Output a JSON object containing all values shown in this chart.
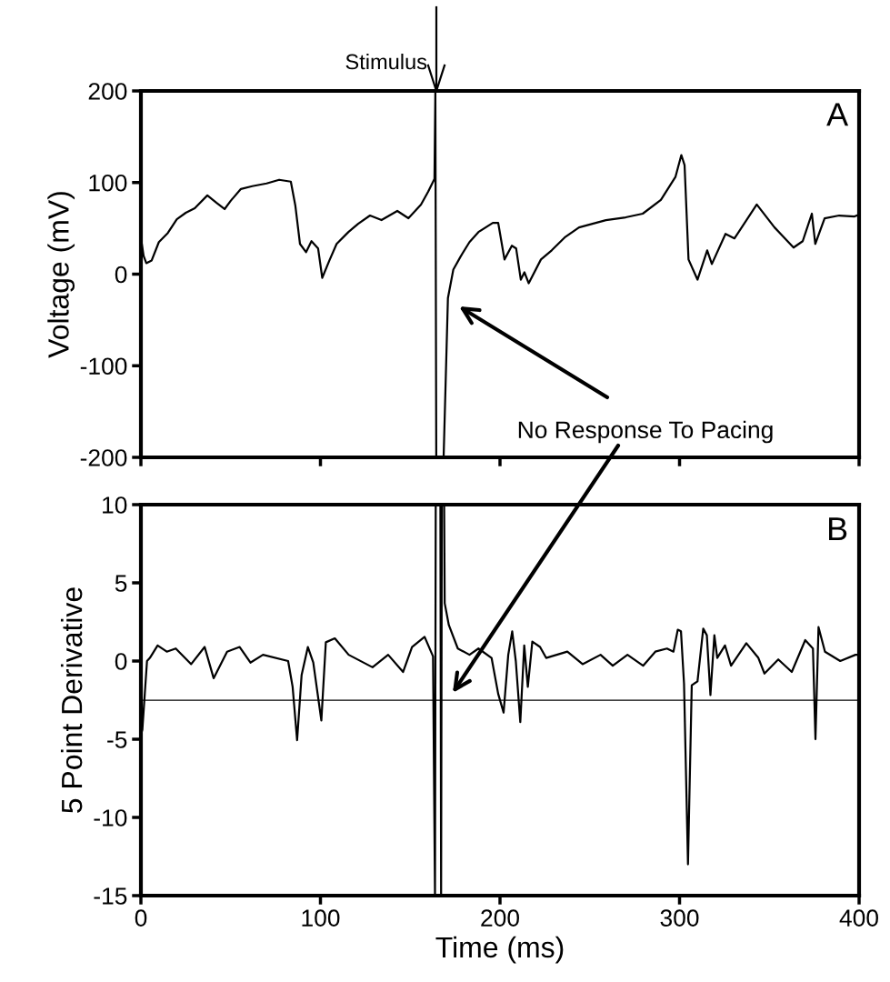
{
  "chart_data": [
    {
      "type": "line",
      "ylabel": "Voltage (mV)",
      "xlim": [
        0,
        400
      ],
      "xticks": [
        0,
        100,
        200,
        300,
        400
      ],
      "ylim": [
        -200,
        200
      ],
      "yticks": [
        -200,
        -100,
        0,
        100,
        200
      ],
      "tick_labels": "y",
      "grid": false,
      "legend": false,
      "series": [
        {
          "color": "#000000",
          "x": [
            0,
            1.5,
            3,
            6,
            10,
            15,
            20,
            25,
            30,
            37,
            42,
            46.6,
            50,
            55.7,
            62,
            70,
            77,
            83.5,
            86,
            88.6,
            92,
            95,
            98.7,
            101,
            105,
            109,
            115.6,
            121,
            127.6,
            134,
            142.8,
            149,
            156,
            160,
            163.5,
            164,
            164.5,
            168.6,
            171,
            174,
            178,
            183,
            188,
            196,
            199,
            202.5,
            206.6,
            209,
            211.6,
            213.6,
            216,
            222.8,
            228.8,
            236,
            244,
            259,
            270,
            279.5,
            289.6,
            297.7,
            301,
            302.8,
            305,
            310,
            315.4,
            318,
            325.6,
            330.6,
            343,
            352.9,
            363.5,
            368.6,
            373.7,
            375.6,
            380.8,
            388.9,
            397.5,
            400
          ],
          "values": [
            40,
            20,
            12,
            15,
            35,
            45,
            60,
            67,
            72,
            86,
            78,
            71,
            80,
            93,
            96,
            99,
            103,
            101,
            75,
            33,
            24,
            36,
            28,
            -4,
            15,
            33,
            46,
            55,
            64,
            59,
            69,
            61,
            76,
            90,
            104,
            200,
            -200,
            -200,
            -26,
            5,
            19,
            35,
            46,
            56,
            56,
            16,
            31,
            28,
            -6,
            2,
            -10,
            16,
            26,
            40,
            51,
            59,
            62,
            66,
            81,
            106,
            130,
            119,
            16,
            -6,
            26,
            11,
            44,
            39,
            76,
            51,
            29,
            36,
            66,
            33,
            61,
            64,
            63,
            65
          ]
        }
      ],
      "annotations": [
        "Stimulus",
        "No Response To Pacing",
        "A"
      ]
    },
    {
      "type": "line",
      "xlabel": "Time (ms)",
      "ylabel": "5 Point Derivative",
      "xlim": [
        0,
        400
      ],
      "xticks": [
        0,
        100,
        200,
        300,
        400
      ],
      "ylim": [
        -15,
        10
      ],
      "yticks": [
        -15,
        -10,
        -5,
        0,
        5,
        10
      ],
      "grid": false,
      "legend": false,
      "series": [
        {
          "color": "#000000",
          "x": [
            0,
            0.8,
            3.4,
            5,
            9.3,
            14.4,
            19.4,
            28,
            35.5,
            40.5,
            48,
            55,
            61,
            68,
            82,
            84.5,
            87,
            89.5,
            93,
            96,
            100.5,
            103,
            108,
            115.7,
            129,
            137.7,
            146,
            151,
            158,
            162.7,
            163.8,
            164.2,
            166.8,
            167.2,
            167.6,
            168.9,
            169.2,
            171.5,
            176.5,
            183,
            188,
            195.3,
            199,
            202,
            204.6,
            206.8,
            208.8,
            211.3,
            213.5,
            215.5,
            218,
            222.3,
            225.7,
            237.5,
            246,
            256,
            262.8,
            271,
            279.7,
            286.5,
            293,
            296.6,
            299,
            300.8,
            302.5,
            304.7,
            306.8,
            310,
            313.2,
            315.2,
            317.2,
            319.4,
            321,
            325.3,
            328.7,
            337.2,
            343.9,
            347.3,
            355,
            362.5,
            370,
            374.3,
            375.7,
            377.4,
            381,
            389.5,
            398,
            400
          ],
          "values": [
            -4.7,
            -4.4,
            0,
            0.2,
            1.0,
            0.6,
            0.8,
            -0.2,
            0.9,
            -1.1,
            0.6,
            0.9,
            -0.1,
            0.4,
            0,
            -1.65,
            -5.06,
            -0.9,
            0.9,
            -0.1,
            -3.8,
            1.2,
            1.45,
            0.4,
            -0.4,
            0.4,
            -0.7,
            0.9,
            1.55,
            0.3,
            -15,
            10,
            10,
            -15,
            10,
            10,
            3.7,
            2.3,
            0.8,
            0.4,
            0.8,
            0.2,
            -2.1,
            -3.3,
            0.4,
            1.9,
            0,
            -3.9,
            1.0,
            -1.65,
            1.24,
            0.9,
            0.2,
            0.6,
            -0.2,
            0.4,
            -0.3,
            0.4,
            -0.3,
            0.6,
            0.8,
            0.6,
            2.0,
            1.9,
            -1.45,
            -13.0,
            -1.55,
            -1.3,
            2.07,
            1.65,
            -2.17,
            1.65,
            0.2,
            1.0,
            -0.3,
            1.14,
            0.2,
            -0.8,
            0.1,
            -0.7,
            1.34,
            0.8,
            -5.0,
            2.17,
            0.6,
            0,
            0.4,
            0.4
          ]
        }
      ],
      "ref_lines": [
        {
          "axis": "y",
          "value": -2.5,
          "color": "#000000"
        }
      ],
      "annotations": [
        "B"
      ]
    }
  ]
}
